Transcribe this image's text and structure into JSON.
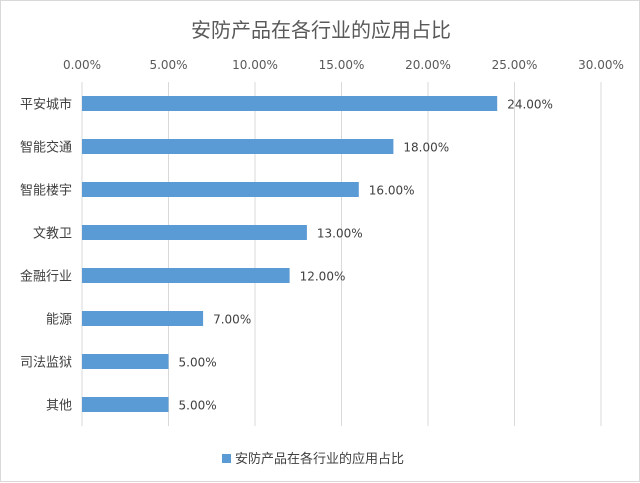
{
  "chart_data": {
    "type": "bar",
    "orientation": "horizontal",
    "title": "安防产品在各行业的应用占比",
    "categories": [
      "平安城市",
      "智能交通",
      "智能楼宇",
      "文教卫",
      "金融行业",
      "能源",
      "司法监狱",
      "其他"
    ],
    "series": [
      {
        "name": "安防产品在各行业的应用占比",
        "values": [
          24.0,
          18.0,
          16.0,
          13.0,
          12.0,
          7.0,
          5.0,
          5.0
        ],
        "labels": [
          "24.00%",
          "18.00%",
          "16.00%",
          "13.00%",
          "12.00%",
          "7.00%",
          "5.00%",
          "5.00%"
        ],
        "color": "#5b9bd5"
      }
    ],
    "x_axis": {
      "position": "top",
      "range": [
        0,
        30
      ],
      "ticks": [
        0,
        5,
        10,
        15,
        20,
        25,
        30
      ],
      "tick_labels": [
        "0.00%",
        "5.00%",
        "10.00%",
        "15.00%",
        "20.00%",
        "25.00%",
        "30.00%"
      ]
    },
    "grid": true,
    "grid_color": "#d9d9d9",
    "legend_position": "bottom"
  }
}
